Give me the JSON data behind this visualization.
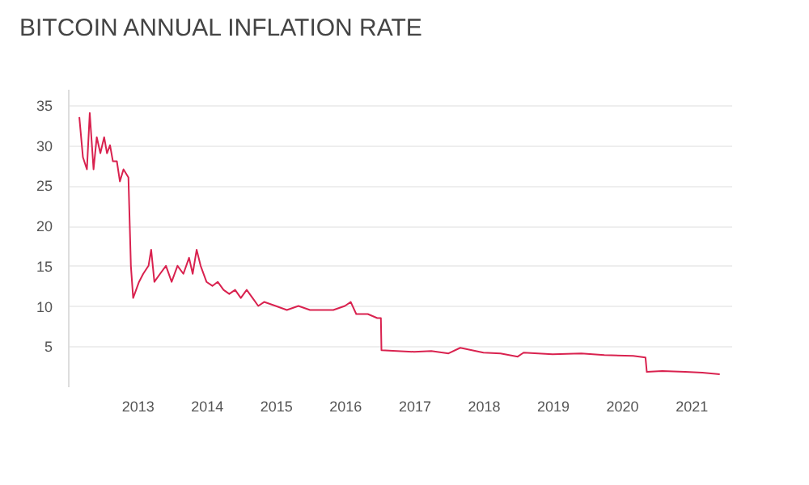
{
  "chart_data": {
    "type": "line",
    "title": "BITCOIN ANNUAL INFLATION RATE",
    "x": [
      "2012-03-01",
      "2012-03-20",
      "2012-04-10",
      "2012-04-25",
      "2012-05-15",
      "2012-06-01",
      "2012-06-20",
      "2012-07-10",
      "2012-07-25",
      "2012-08-10",
      "2012-08-25",
      "2012-09-15",
      "2012-10-01",
      "2012-10-20",
      "2012-11-15",
      "2012-11-28",
      "2012-12-10",
      "2013-01-10",
      "2013-02-01",
      "2013-03-01",
      "2013-03-15",
      "2013-04-01",
      "2013-05-01",
      "2013-06-01",
      "2013-07-01",
      "2013-08-01",
      "2013-09-01",
      "2013-10-01",
      "2013-10-20",
      "2013-11-10",
      "2013-12-01",
      "2014-01-01",
      "2014-02-01",
      "2014-03-01",
      "2014-04-01",
      "2014-05-01",
      "2014-06-01",
      "2014-07-01",
      "2014-08-01",
      "2014-09-01",
      "2014-10-01",
      "2014-11-01",
      "2015-01-01",
      "2015-03-01",
      "2015-05-01",
      "2015-07-01",
      "2015-09-01",
      "2015-11-01",
      "2016-01-01",
      "2016-02-01",
      "2016-03-01",
      "2016-05-01",
      "2016-06-20",
      "2016-07-09",
      "2016-07-12",
      "2016-10-01",
      "2017-01-01",
      "2017-04-01",
      "2017-07-01",
      "2017-09-01",
      "2017-11-01",
      "2018-01-01",
      "2018-04-01",
      "2018-07-01",
      "2018-08-01",
      "2019-01-01",
      "2019-06-01",
      "2019-10-01",
      "2020-03-01",
      "2020-05-05",
      "2020-05-12",
      "2020-08-01",
      "2020-12-01",
      "2021-03-01",
      "2021-06-01"
    ],
    "series": [
      {
        "color": "#d9224f",
        "values": [
          33.5,
          28.5,
          27,
          34,
          27,
          31,
          29,
          31,
          29,
          30,
          28,
          28,
          25.5,
          27,
          26,
          15,
          11,
          13,
          14,
          15,
          17,
          13,
          14,
          15,
          13,
          15,
          14,
          16,
          14,
          17,
          15,
          13,
          12.5,
          13,
          12,
          11.5,
          12,
          11,
          12,
          11,
          10,
          10.5,
          10,
          9.5,
          10,
          9.5,
          9.5,
          9.5,
          10,
          10.5,
          9,
          9,
          8.5,
          8.5,
          4.5,
          4.4,
          4.3,
          4.4,
          4.1,
          4.8,
          4.5,
          4.2,
          4.1,
          3.7,
          4.2,
          4.0,
          4.1,
          3.9,
          3.8,
          3.6,
          1.8,
          1.9,
          1.8,
          1.7,
          1.5
        ]
      }
    ],
    "xlim": [
      "2012-01-01",
      "2021-08-01"
    ],
    "xticks": [
      "2013",
      "2014",
      "2015",
      "2016",
      "2017",
      "2018",
      "2019",
      "2020",
      "2021"
    ],
    "ylim": [
      0,
      37
    ],
    "yticks": [
      5,
      10,
      15,
      20,
      25,
      30,
      35
    ],
    "grid": "y"
  }
}
